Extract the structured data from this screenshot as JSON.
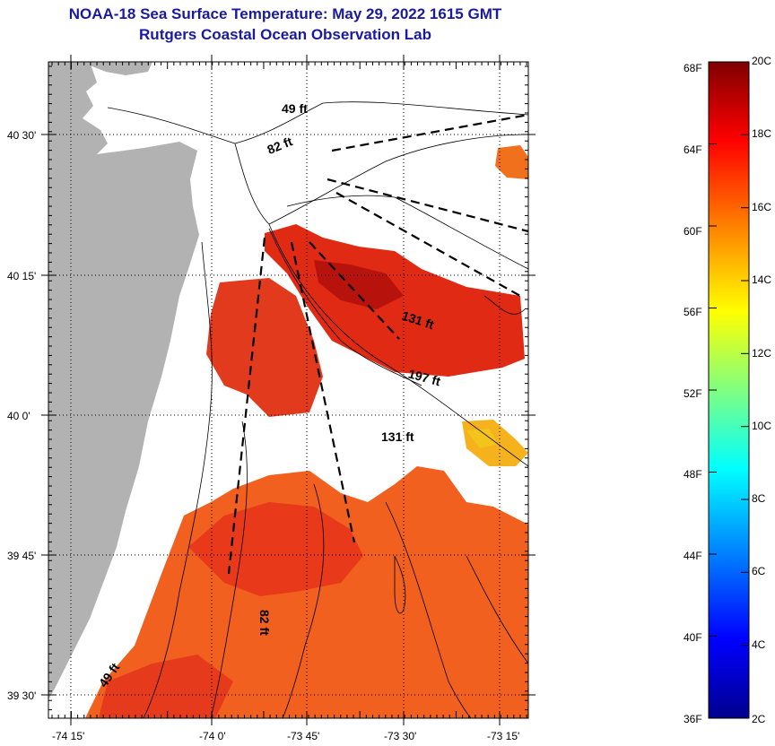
{
  "header": {
    "title": "NOAA-18 Sea Surface Temperature:  May 29, 2022 1615 GMT",
    "subtitle": "Rutgers Coastal Ocean Observation Lab"
  },
  "map": {
    "lon_labels": [
      "-74 15'",
      "-74 0'",
      "-73 45'",
      "-73 30'",
      "-73 15'"
    ],
    "lat_labels": [
      "40 30'",
      "40 15'",
      "40 0'",
      "39 45'",
      "39 30'"
    ],
    "depth_labels": [
      "49 ft",
      "82 ft",
      "131 ft",
      "197 ft",
      "131 ft",
      "82 ft",
      "49 ft"
    ]
  },
  "colorbar": {
    "fahrenheit_labels": [
      "68F",
      "64F",
      "60F",
      "56F",
      "52F",
      "48F",
      "44F",
      "40F",
      "36F"
    ],
    "celsius_labels": [
      "20C",
      "18C",
      "16C",
      "14C",
      "12C",
      "10C",
      "8C",
      "6C",
      "4C",
      "2C"
    ],
    "colors": [
      "#00008f",
      "#0000ff",
      "#0080ff",
      "#00ffff",
      "#80ff80",
      "#ffff00",
      "#ff8000",
      "#ff0000",
      "#800000"
    ]
  },
  "colors": {
    "land": "#b2b2b2",
    "water_no_data": "#ffffff",
    "title_text": "#1a1aa0"
  }
}
